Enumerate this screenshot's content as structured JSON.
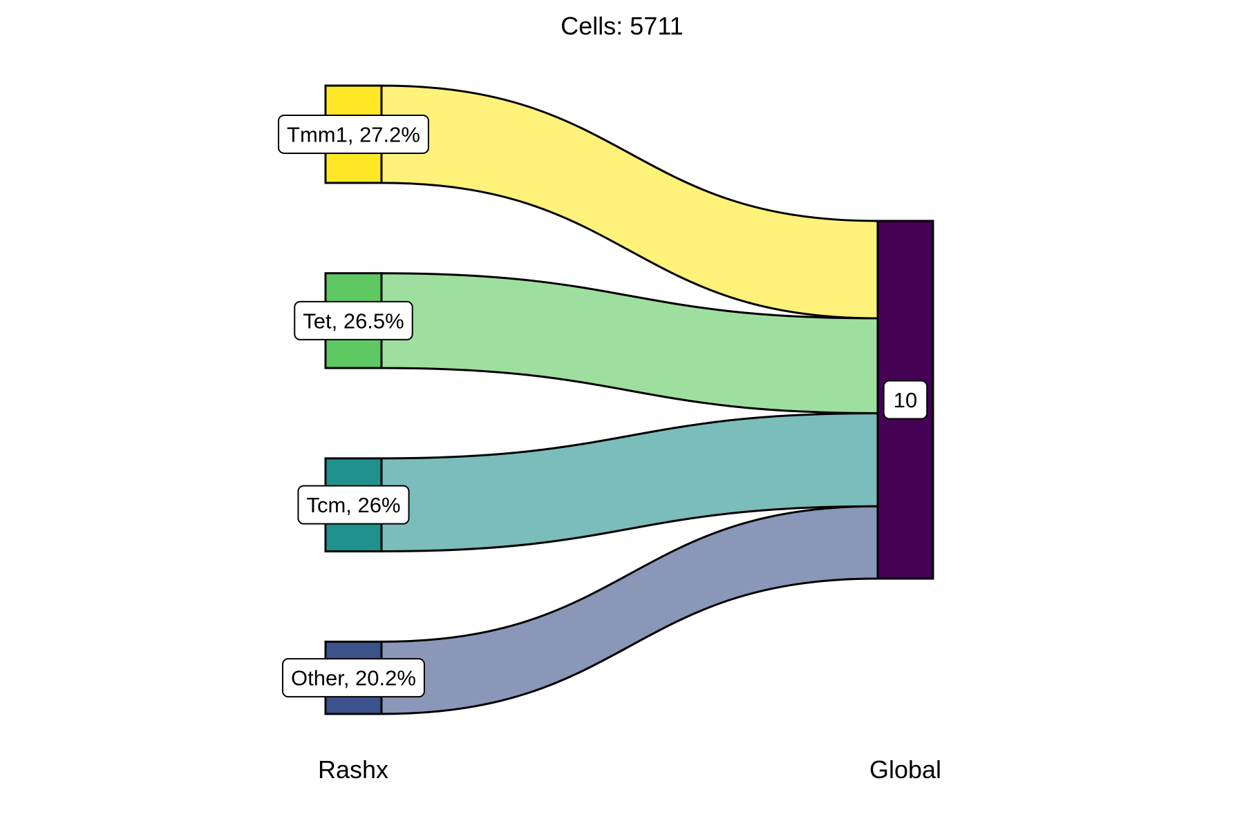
{
  "chart_data": {
    "type": "sankey",
    "title": "Cells:  5711",
    "axes": [
      "Rashx",
      "Global"
    ],
    "nodes_left": [
      {
        "label": "Tmm1, 27.2%",
        "name": "Tmm1",
        "percent": 27.2,
        "color": "#FDE725",
        "flow_color": "#FEF27A"
      },
      {
        "label": "Tet, 26.5%",
        "name": "Tet",
        "percent": 26.5,
        "color": "#5EC962",
        "flow_color": "#9EDFA0"
      },
      {
        "label": "Tcm, 26%",
        "name": "Tcm",
        "percent": 26.0,
        "color": "#21918C",
        "flow_color": "#7ABDBA"
      },
      {
        "label": "Other, 20.2%",
        "name": "Other",
        "percent": 20.2,
        "color": "#3B528B",
        "flow_color": "#8A97B9"
      }
    ],
    "node_right": {
      "label": "10",
      "color": "#440154"
    },
    "flows": [
      {
        "from": "Tmm1",
        "to": "10",
        "percent": 27.2
      },
      {
        "from": "Tet",
        "to": "10",
        "percent": 26.5
      },
      {
        "from": "Tcm",
        "to": "10",
        "percent": 26.0
      },
      {
        "from": "Other",
        "to": "10",
        "percent": 20.2
      }
    ]
  }
}
